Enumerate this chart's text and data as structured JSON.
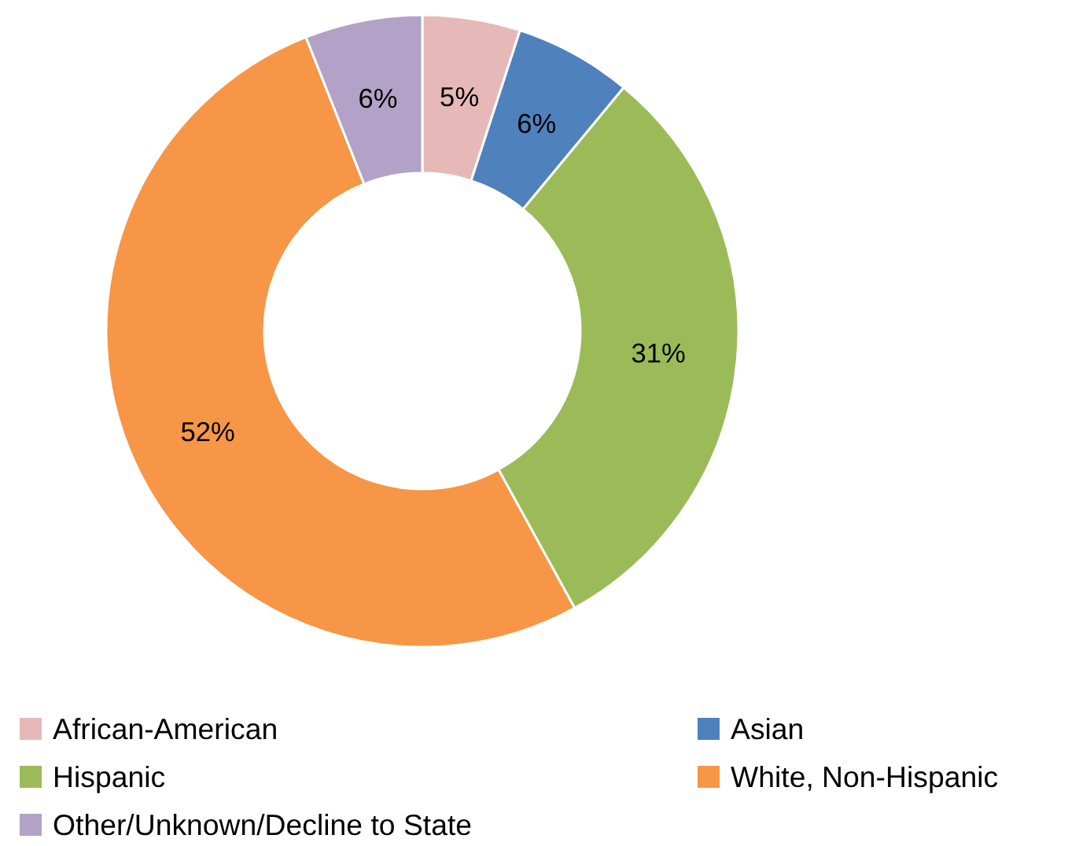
{
  "chart_data": {
    "type": "donut",
    "categories": [
      "African-American",
      "Asian",
      "Hispanic",
      "White, Non-Hispanic",
      "Other/Unknown/Decline to State"
    ],
    "values": [
      5,
      6,
      31,
      52,
      6
    ],
    "colors": [
      "#e6b9b8",
      "#4f81bd",
      "#9bbb59",
      "#f79646",
      "#b3a2c7"
    ],
    "value_labels": [
      "5%",
      "6%",
      "31%",
      "52%",
      "6%"
    ],
    "legend": "bottom"
  }
}
